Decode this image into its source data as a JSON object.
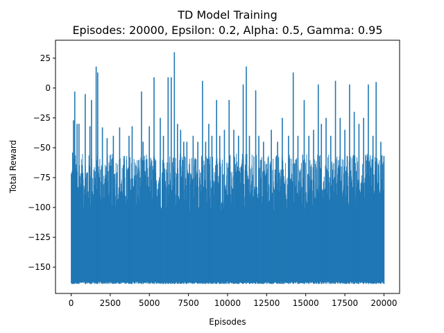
{
  "chart_data": {
    "type": "line",
    "title": "TD Model Training",
    "subtitle": "Episodes: 20000, Epsilon: 0.2, Alpha: 0.5, Gamma: 0.95",
    "xlabel": "Episodes",
    "ylabel": "Total Reward",
    "xlim": [
      -1000,
      21000
    ],
    "ylim": [
      -172,
      40
    ],
    "x_ticks": [
      0,
      2500,
      5000,
      7500,
      10000,
      12500,
      15000,
      17500,
      20000
    ],
    "x_tick_labels": [
      "0",
      "2500",
      "5000",
      "7500",
      "10000",
      "12500",
      "15000",
      "17500",
      "20000"
    ],
    "y_ticks": [
      -150,
      -125,
      -100,
      -75,
      -50,
      -25,
      0,
      25
    ],
    "y_tick_labels": [
      "−150",
      "−125",
      "−100",
      "−75",
      "−50",
      "−25",
      "0",
      "25"
    ],
    "grid": false,
    "legend": false,
    "series": [
      {
        "color": "#1f77b4",
        "episodes": 20000,
        "floor": -164,
        "typical_range": [
          -164,
          -55
        ],
        "peaks": [
          {
            "x": 50,
            "y": -108
          },
          {
            "x": 100,
            "y": -54
          },
          {
            "x": 150,
            "y": -27
          },
          {
            "x": 230,
            "y": -3
          },
          {
            "x": 380,
            "y": -30
          },
          {
            "x": 500,
            "y": -30
          },
          {
            "x": 900,
            "y": -5
          },
          {
            "x": 1200,
            "y": -32
          },
          {
            "x": 1300,
            "y": -10
          },
          {
            "x": 1600,
            "y": 18
          },
          {
            "x": 1700,
            "y": 13
          },
          {
            "x": 2000,
            "y": -33
          },
          {
            "x": 2300,
            "y": -42
          },
          {
            "x": 2700,
            "y": -40
          },
          {
            "x": 3100,
            "y": -33
          },
          {
            "x": 3700,
            "y": -40
          },
          {
            "x": 3900,
            "y": -32
          },
          {
            "x": 4500,
            "y": -3
          },
          {
            "x": 4600,
            "y": -45
          },
          {
            "x": 5000,
            "y": -32
          },
          {
            "x": 5300,
            "y": 9
          },
          {
            "x": 5700,
            "y": -25
          },
          {
            "x": 5900,
            "y": -40
          },
          {
            "x": 6200,
            "y": 9
          },
          {
            "x": 6400,
            "y": 9
          },
          {
            "x": 6600,
            "y": 30
          },
          {
            "x": 6800,
            "y": -30
          },
          {
            "x": 7000,
            "y": -35
          },
          {
            "x": 7200,
            "y": -45
          },
          {
            "x": 7400,
            "y": -45
          },
          {
            "x": 7800,
            "y": -40
          },
          {
            "x": 8100,
            "y": -45
          },
          {
            "x": 8400,
            "y": 6
          },
          {
            "x": 8600,
            "y": -45
          },
          {
            "x": 8800,
            "y": -30
          },
          {
            "x": 9000,
            "y": -40
          },
          {
            "x": 9300,
            "y": -10
          },
          {
            "x": 9500,
            "y": -40
          },
          {
            "x": 9800,
            "y": -35
          },
          {
            "x": 10100,
            "y": -10
          },
          {
            "x": 10400,
            "y": -35
          },
          {
            "x": 10700,
            "y": -40
          },
          {
            "x": 11000,
            "y": 3
          },
          {
            "x": 11200,
            "y": 18
          },
          {
            "x": 11400,
            "y": -40
          },
          {
            "x": 11800,
            "y": -2
          },
          {
            "x": 12000,
            "y": -40
          },
          {
            "x": 12300,
            "y": -45
          },
          {
            "x": 12800,
            "y": -35
          },
          {
            "x": 13200,
            "y": -45
          },
          {
            "x": 13500,
            "y": -25
          },
          {
            "x": 13900,
            "y": -40
          },
          {
            "x": 14200,
            "y": 13
          },
          {
            "x": 14500,
            "y": -40
          },
          {
            "x": 14900,
            "y": -10
          },
          {
            "x": 15200,
            "y": -40
          },
          {
            "x": 15500,
            "y": -35
          },
          {
            "x": 15800,
            "y": 3
          },
          {
            "x": 16000,
            "y": -30
          },
          {
            "x": 16300,
            "y": -25
          },
          {
            "x": 16600,
            "y": -40
          },
          {
            "x": 16900,
            "y": 6
          },
          {
            "x": 17200,
            "y": -25
          },
          {
            "x": 17500,
            "y": -35
          },
          {
            "x": 17800,
            "y": 3
          },
          {
            "x": 18100,
            "y": -20
          },
          {
            "x": 18400,
            "y": -30
          },
          {
            "x": 18700,
            "y": -25
          },
          {
            "x": 19000,
            "y": 3
          },
          {
            "x": 19300,
            "y": -40
          },
          {
            "x": 19500,
            "y": 5
          },
          {
            "x": 19800,
            "y": -45
          },
          {
            "x": 20000,
            "y": -57
          }
        ]
      }
    ]
  }
}
